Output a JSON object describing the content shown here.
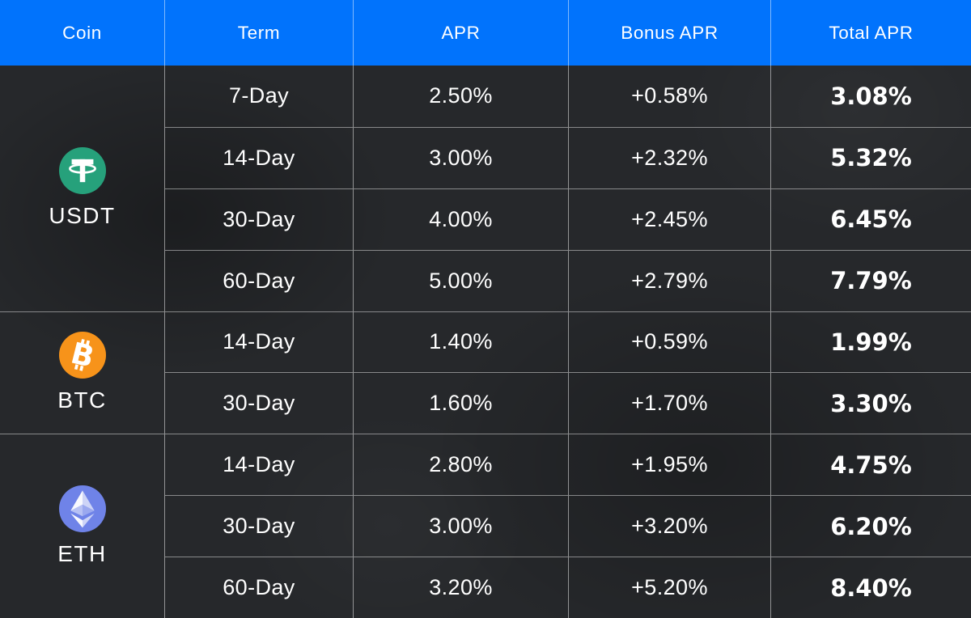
{
  "colors": {
    "header_bg": "#0173FC",
    "body_bg": "#26282B",
    "grid_line": "rgba(255,255,255,0.45)",
    "tether_green": "#26A17B",
    "bitcoin_orange": "#F7931A",
    "ethereum_blue": "#6F83E8",
    "text": "#FFFFFF"
  },
  "chart_data": {
    "type": "table",
    "columns": [
      "Coin",
      "Term",
      "APR",
      "Bonus APR",
      "Total APR"
    ],
    "groups": [
      {
        "coin": "USDT",
        "icon": "tether-icon",
        "rows": [
          {
            "term": "7-Day",
            "apr": "2.50%",
            "bonus": "+0.58%",
            "total": "3.08%"
          },
          {
            "term": "14-Day",
            "apr": "3.00%",
            "bonus": "+2.32%",
            "total": "5.32%"
          },
          {
            "term": "30-Day",
            "apr": "4.00%",
            "bonus": "+2.45%",
            "total": "6.45%"
          },
          {
            "term": "60-Day",
            "apr": "5.00%",
            "bonus": "+2.79%",
            "total": "7.79%"
          }
        ]
      },
      {
        "coin": "BTC",
        "icon": "bitcoin-icon",
        "rows": [
          {
            "term": "14-Day",
            "apr": "1.40%",
            "bonus": "+0.59%",
            "total": "1.99%"
          },
          {
            "term": "30-Day",
            "apr": "1.60%",
            "bonus": "+1.70%",
            "total": "3.30%"
          }
        ]
      },
      {
        "coin": "ETH",
        "icon": "ethereum-icon",
        "rows": [
          {
            "term": "14-Day",
            "apr": "2.80%",
            "bonus": "+1.95%",
            "total": "4.75%"
          },
          {
            "term": "30-Day",
            "apr": "3.00%",
            "bonus": "+3.20%",
            "total": "6.20%"
          },
          {
            "term": "60-Day",
            "apr": "3.20%",
            "bonus": "+5.20%",
            "total": "8.40%"
          }
        ]
      }
    ]
  }
}
